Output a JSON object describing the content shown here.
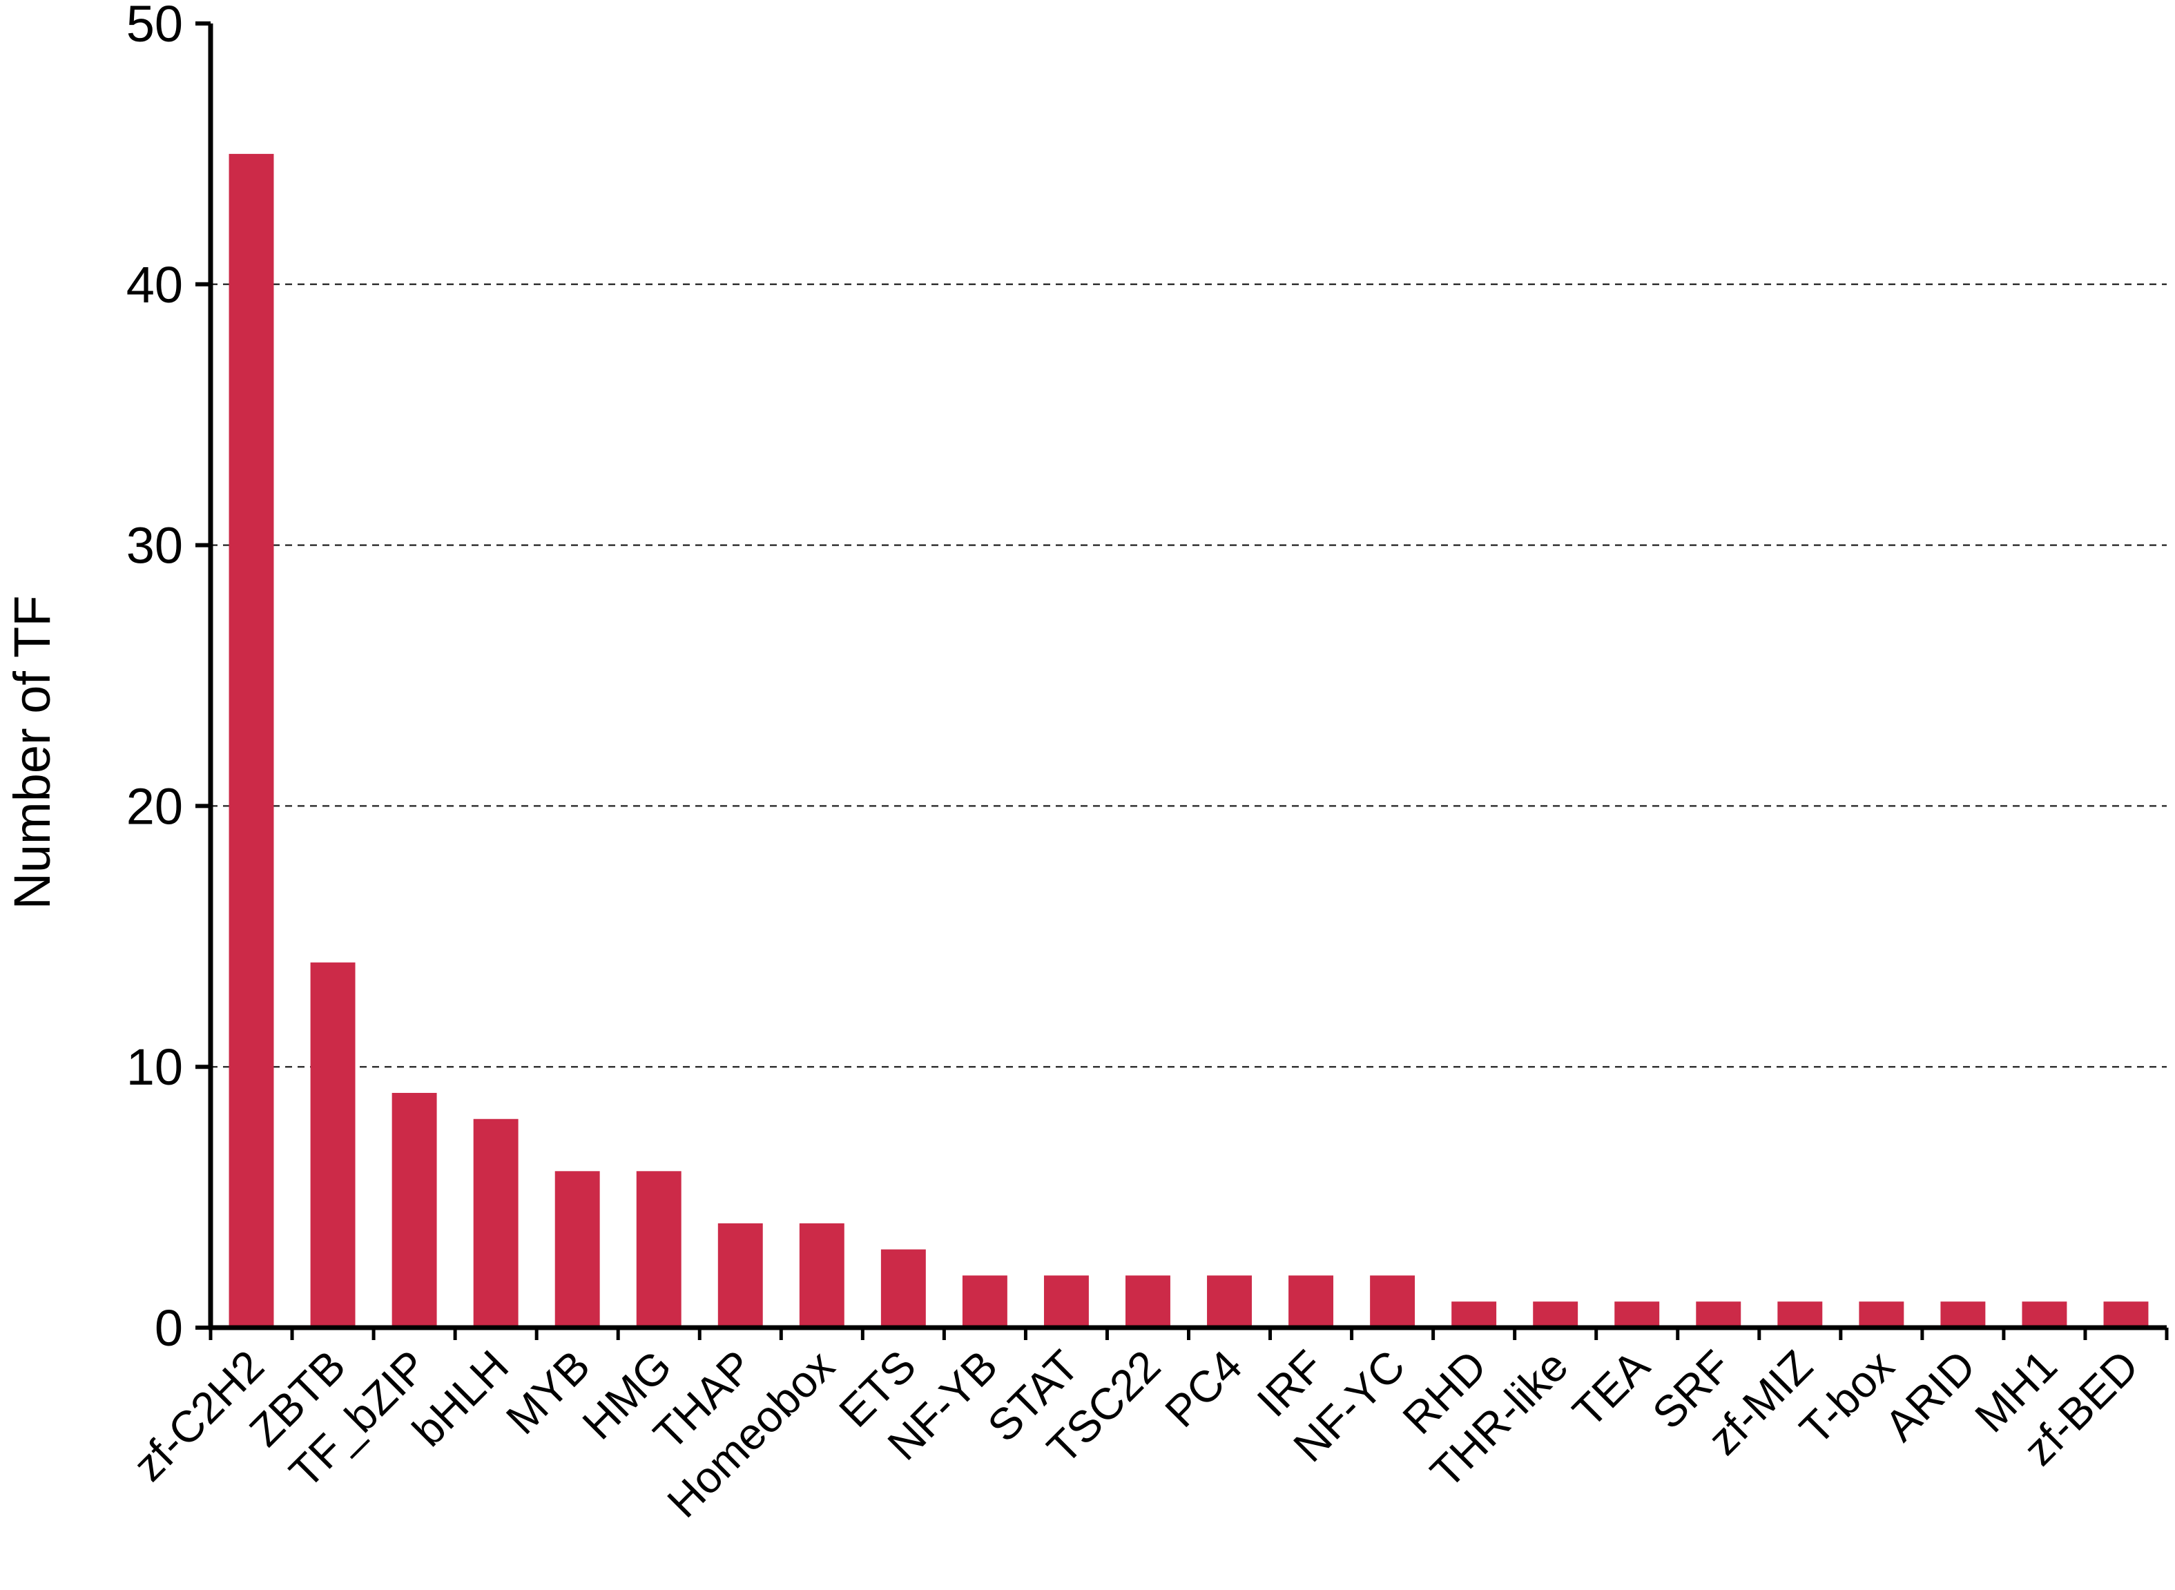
{
  "chart_data": {
    "type": "bar",
    "y_axis_label": "Number of TF",
    "categories": [
      "zf-C2H2",
      "ZBTB",
      "TF_bZIP",
      "bHLH",
      "MYB",
      "HMG",
      "THAP",
      "Homeobox",
      "ETS",
      "NF-YB",
      "STAT",
      "TSC22",
      "PC4",
      "IRF",
      "NF-YC",
      "RHD",
      "THR-like",
      "TEA",
      "SRF",
      "zf-MIZ",
      "T-box",
      "ARID",
      "MH1",
      "zf-BED"
    ],
    "values": [
      45,
      14,
      9,
      8,
      6,
      6,
      4,
      4,
      3,
      2,
      2,
      2,
      2,
      2,
      2,
      1,
      1,
      1,
      1,
      1,
      1,
      1,
      1,
      1
    ],
    "color": "#cc2a48",
    "ylim": [
      0,
      50
    ],
    "yticks": [
      0,
      10,
      20,
      30,
      40,
      50
    ],
    "grid": true
  }
}
